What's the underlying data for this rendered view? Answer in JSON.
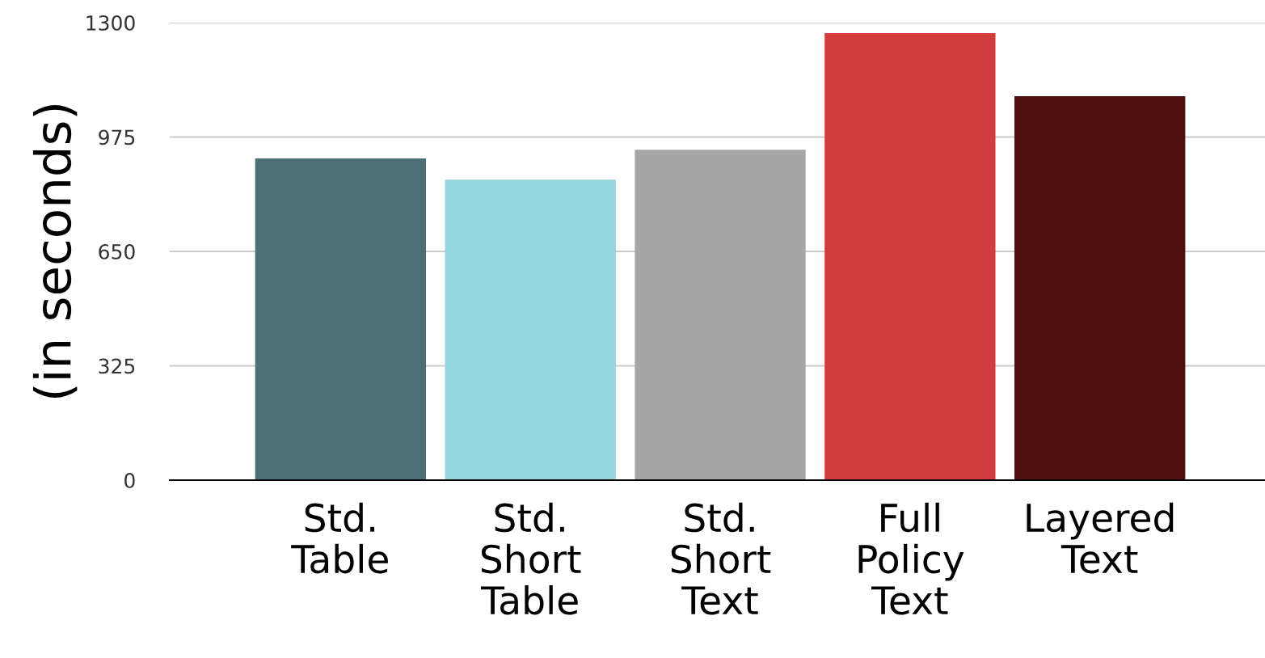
{
  "chart_data": {
    "type": "bar",
    "ylabel": "(in seconds)",
    "categories": [
      "Std.\nTable",
      "Std.\nShort\nTable",
      "Std.\nShort\nText",
      "Full\nPolicy\nText",
      "Layered\nText"
    ],
    "values": [
      914,
      854,
      939,
      1270,
      1091
    ],
    "colors": [
      "#4d7075",
      "#93d5de",
      "#a6a6a6",
      "#d23c3c",
      "#4f100c"
    ],
    "ylim": [
      0,
      1300
    ],
    "yticks": [
      0,
      325,
      650,
      975,
      1300
    ],
    "grid": "y"
  }
}
